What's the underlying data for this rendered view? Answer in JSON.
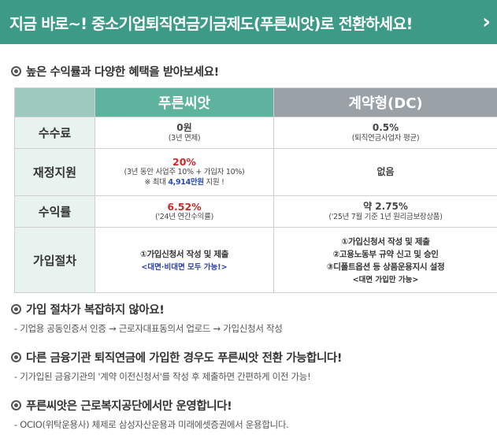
{
  "banner": {
    "title": "지금 바로~! 중소기업퇴직연금기금제도(푸른씨앗)로 전환하세요!",
    "chevron": "›"
  },
  "section1": {
    "heading": "높은 수익률과 다양한 혜택을 받아보세요!"
  },
  "table": {
    "col_headers": [
      "",
      "푸른씨앗",
      "계약형(DC)"
    ],
    "rows": [
      {
        "label": "수수료",
        "a_main": "0원",
        "a_sub": "(3년 면제)",
        "b_main": "0.5%",
        "b_sub": "(퇴직연금사업자 평균)"
      },
      {
        "label": "재정지원",
        "a_main": "20%",
        "a_sub": "(3년 동안 사업주 10% + 가입자 10%)",
        "a_note_prefix": "※ 최대 ",
        "a_note_highlight": "4,914만원",
        "a_note_suffix": " 지원 !",
        "b_main": "없음"
      },
      {
        "label": "수익률",
        "a_main": "6.52%",
        "a_sub": "('24년 연간수익률)",
        "b_main": "약 2.75%",
        "b_sub": "('25년 7월 기준 1년 원리금보장상품)"
      },
      {
        "label": "가입절차",
        "a_steps": [
          "①가입신청서 작성 및 제출"
        ],
        "a_note": "<대면·비대면 모두 가능!>",
        "b_steps": [
          "①가입신청서 작성 및 제출",
          "②고용노동부 규약 신고 및 승인",
          "③디폴트옵션 등 상품운용지시 설정"
        ],
        "b_note": "<대면 가입만 가능>"
      }
    ]
  },
  "section2": {
    "heading": "가입 절차가 복잡하지 않아요!",
    "desc": "-  기업용 공동인증서 인증 → 근로자대표동의서 업로드 → 가입신청서 작성"
  },
  "section3": {
    "heading": "다른 금융기관 퇴직연금에 가입한 경우도 푸른씨앗 전환 가능합니다!",
    "desc": "-  기가입된 금융기관의 '계약 이전신청서'를 작성 후 제출하면 간편하게 이전 가능!"
  },
  "section4": {
    "heading": "푸른씨앗은 근로복지공단에서만 운영합니다!",
    "desc": "-  OCIO(위탁운용사) 체제로 삼성자산운용과 미래에셋증권에서 운용합니다."
  },
  "colors": {
    "banner": "#3d9a87",
    "header_green": "#5db39e",
    "header_gray": "#9aa2a8",
    "red": "#cc2a2a",
    "blue": "#2a4ab8"
  }
}
